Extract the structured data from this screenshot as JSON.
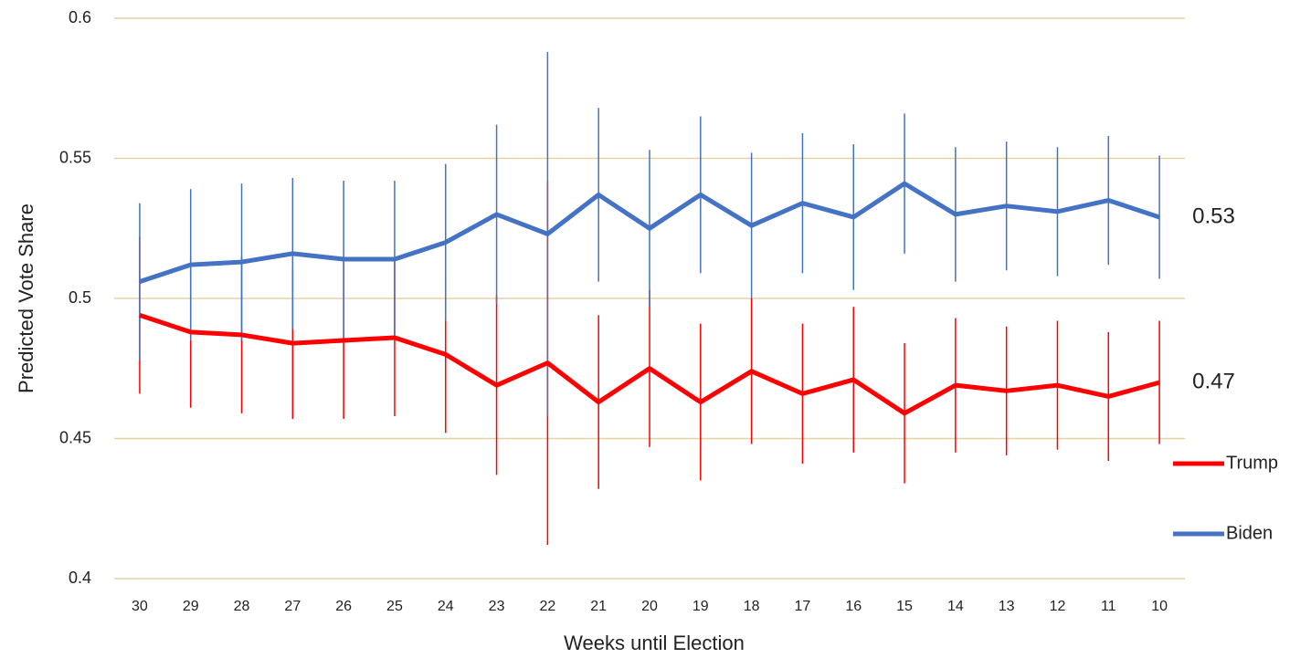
{
  "chart_data": {
    "type": "line",
    "x_label": "Weeks until Election",
    "y_label": "Predicted Vote Share",
    "categories": [
      "30",
      "29",
      "28",
      "27",
      "26",
      "25",
      "24",
      "23",
      "22",
      "21",
      "20",
      "19",
      "18",
      "17",
      "16",
      "15",
      "14",
      "13",
      "12",
      "11",
      "10"
    ],
    "series": [
      {
        "name": "Trump",
        "color": "#ff0000",
        "values": [
          0.494,
          0.488,
          0.487,
          0.484,
          0.485,
          0.486,
          0.48,
          0.469,
          0.477,
          0.463,
          0.475,
          0.463,
          0.474,
          0.466,
          0.471,
          0.459,
          0.469,
          0.467,
          0.469,
          0.465,
          0.47
        ],
        "error": [
          0.028,
          0.027,
          0.028,
          0.027,
          0.028,
          0.028,
          0.028,
          0.032,
          0.065,
          0.031,
          0.028,
          0.028,
          0.026,
          0.025,
          0.026,
          0.025,
          0.024,
          0.023,
          0.023,
          0.023,
          0.022
        ]
      },
      {
        "name": "Biden",
        "color": "#4472c4",
        "values": [
          0.506,
          0.512,
          0.513,
          0.516,
          0.514,
          0.514,
          0.52,
          0.53,
          0.523,
          0.537,
          0.525,
          0.537,
          0.526,
          0.534,
          0.529,
          0.541,
          0.53,
          0.533,
          0.531,
          0.535,
          0.529
        ],
        "error": [
          0.028,
          0.027,
          0.028,
          0.027,
          0.028,
          0.028,
          0.028,
          0.032,
          0.065,
          0.031,
          0.028,
          0.028,
          0.026,
          0.025,
          0.026,
          0.025,
          0.024,
          0.023,
          0.023,
          0.023,
          0.022
        ]
      }
    ],
    "annotations": [
      "0.47",
      "0.53"
    ],
    "ylim": [
      0.4,
      0.6
    ],
    "yticks": [
      0.4,
      0.45,
      0.5,
      0.55,
      0.6
    ],
    "grid": true,
    "grid_color": "#e6d3a3",
    "legend": "right"
  }
}
